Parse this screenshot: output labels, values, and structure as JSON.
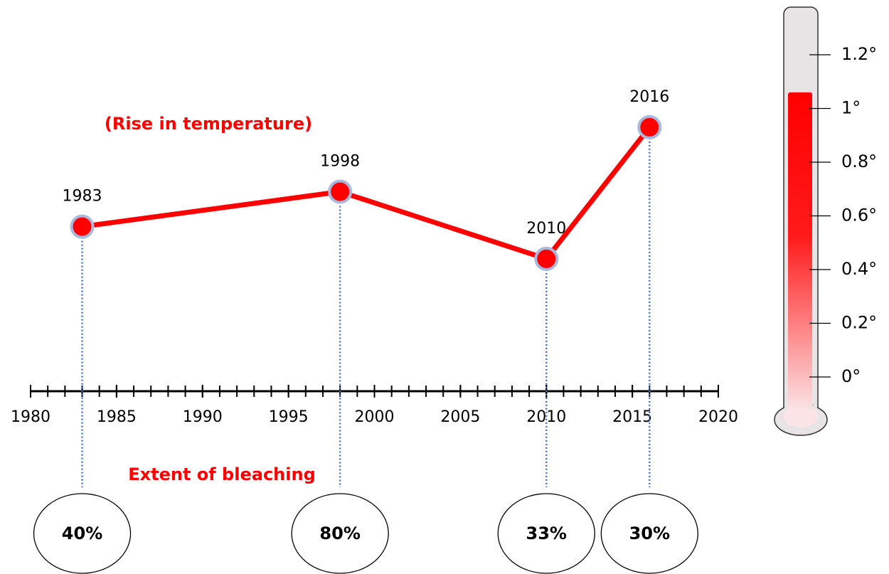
{
  "chart_data": {
    "type": "line",
    "title": "(Rise in temperature)",
    "x": [
      1983,
      1998,
      2010,
      2016
    ],
    "values": [
      0.56,
      0.69,
      0.44,
      0.93
    ],
    "color": "#ff0000",
    "marker_edge_color": "#a9b9de",
    "xlim": [
      1980,
      2020
    ],
    "xticks": [
      1980,
      1985,
      1990,
      1995,
      2000,
      2005,
      2010,
      2015,
      2020
    ],
    "minor_tick_step": 1,
    "ylim": [
      0,
      1.2
    ],
    "yticks": [
      {
        "value": 0,
        "label": "0°"
      },
      {
        "value": 0.2,
        "label": "0.2°"
      },
      {
        "value": 0.4,
        "label": "0.4°"
      },
      {
        "value": 0.6,
        "label": "0.6°"
      },
      {
        "value": 0.8,
        "label": "0.8°"
      },
      {
        "value": 1,
        "label": "1°"
      },
      {
        "value": 1.2,
        "label": "1.2°"
      }
    ],
    "thermometer_level": 1.06,
    "bleaching": {
      "title": "Extent of bleaching",
      "values": [
        40,
        80,
        33,
        30
      ],
      "value_labels": [
        "40%",
        "80%",
        "33%",
        "30%"
      ]
    }
  }
}
